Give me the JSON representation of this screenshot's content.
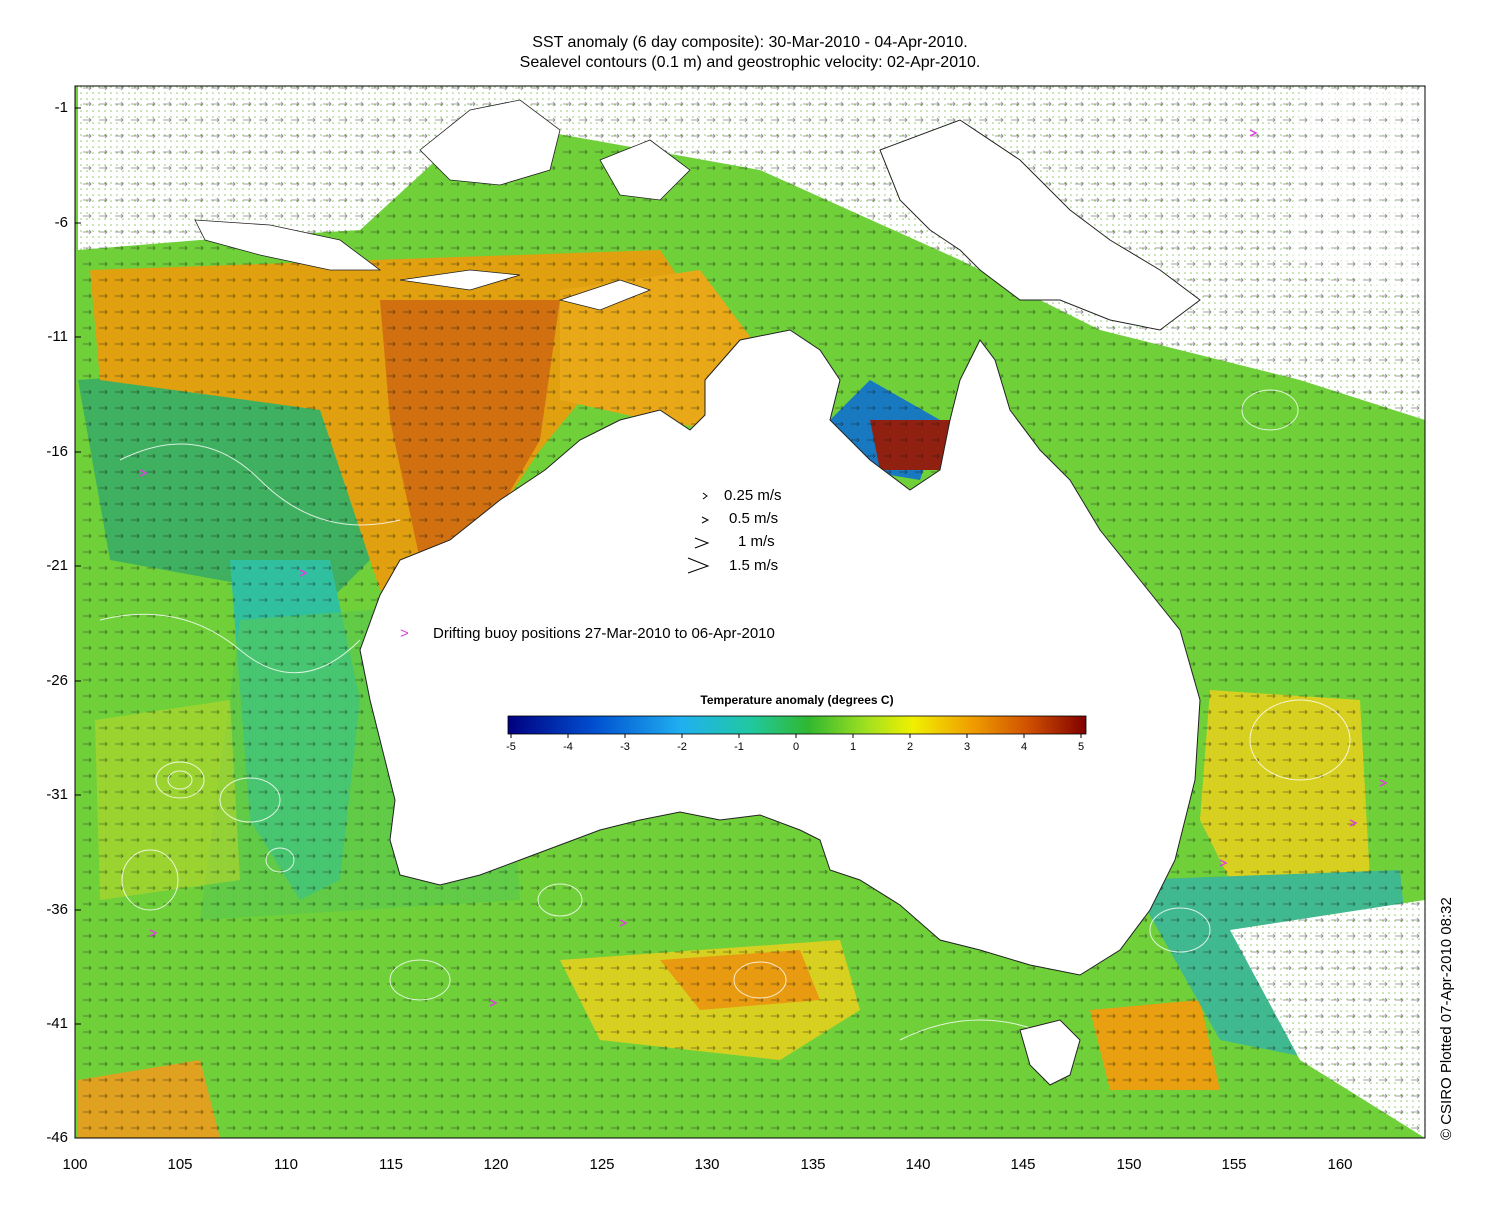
{
  "header": {
    "title_line1": "SST anomaly (6 day composite): 30-Mar-2010 - 04-Apr-2010.",
    "title_line2": "Sealevel contours (0.1 m) and geostrophic velocity: 02-Apr-2010."
  },
  "axes": {
    "x_ticks": [
      "100",
      "105",
      "110",
      "115",
      "120",
      "125",
      "130",
      "135",
      "140",
      "145",
      "150",
      "155",
      "160"
    ],
    "y_ticks": [
      "-1",
      "-6",
      "-11",
      "-16",
      "-21",
      "-26",
      "-31",
      "-36",
      "-41",
      "-46"
    ],
    "lon_range": [
      100,
      164
    ],
    "lat_range": [
      -46,
      -0.2
    ]
  },
  "velocity_legend": [
    {
      "label": "0.25 m/s"
    },
    {
      "label": "0.5 m/s"
    },
    {
      "label": "1 m/s"
    },
    {
      "label": "1.5 m/s"
    }
  ],
  "buoy_legend": {
    "marker": ">",
    "label": "Drifting buoy positions 27-Mar-2010 to 06-Apr-2010"
  },
  "colorbar": {
    "title": "Temperature anomaly (degrees C)",
    "ticks": [
      "-5",
      "-4",
      "-3",
      "-2",
      "-1",
      "0",
      "1",
      "2",
      "3",
      "4",
      "5"
    ],
    "range": [
      -5,
      5
    ]
  },
  "credit": "© CSIRO Plotted 07-Apr-2010 08:32",
  "colors": {
    "land": "#ffffff",
    "ocean_mean": "#6fd03a",
    "warm_anomaly": "#e08a10",
    "cool_anomaly": "#28c8a8",
    "buoy": "#e040e0",
    "contour": "#ffffff"
  }
}
